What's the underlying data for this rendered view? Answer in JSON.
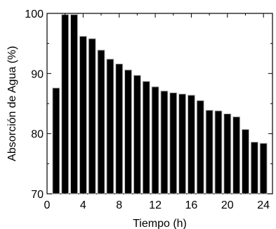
{
  "chart_data": {
    "type": "bar",
    "title": "",
    "xlabel": "Tiempo (h)",
    "ylabel": "Absorción de Agua (%)",
    "x": [
      1,
      2,
      3,
      4,
      5,
      6,
      7,
      8,
      9,
      10,
      11,
      12,
      13,
      14,
      15,
      16,
      17,
      18,
      19,
      20,
      21,
      22,
      23,
      24
    ],
    "values": [
      87.6,
      99.8,
      99.8,
      96.2,
      95.8,
      93.9,
      92.4,
      91.6,
      90.6,
      89.7,
      88.7,
      87.8,
      87.1,
      86.8,
      86.6,
      86.4,
      85.5,
      83.9,
      83.8,
      83.3,
      82.8,
      80.7,
      78.6,
      78.4
    ],
    "xlim": [
      0,
      25
    ],
    "ylim": [
      70,
      100
    ],
    "xticks": [
      0,
      4,
      8,
      12,
      16,
      20,
      24
    ],
    "yticks": [
      70,
      80,
      90,
      100
    ],
    "bar_color": "#000000",
    "bar_edge_color": "#bfbfbf",
    "grid": false,
    "legend": "none"
  }
}
